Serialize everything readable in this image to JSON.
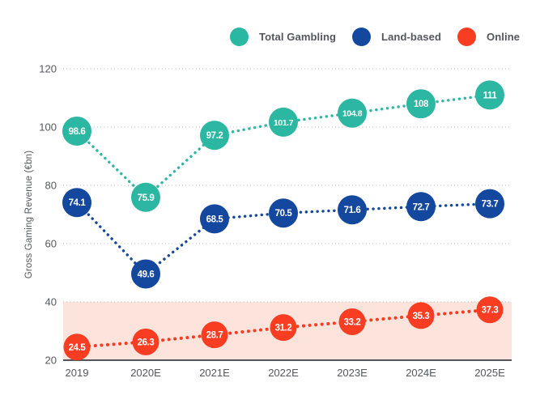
{
  "chart_data": {
    "type": "line",
    "title": "",
    "ylabel": "Gross Gaming Revenue (€bn)",
    "xlabel": "",
    "categories": [
      "2019",
      "2020E",
      "2021E",
      "2022E",
      "2023E",
      "2024E",
      "2025E"
    ],
    "series": [
      {
        "name": "Total Gambling",
        "color": "#2cb7a3",
        "values": [
          98.6,
          75.9,
          97.2,
          101.7,
          104.8,
          108,
          111
        ]
      },
      {
        "name": "Land-based",
        "color": "#14479e",
        "values": [
          74.1,
          49.6,
          68.5,
          70.5,
          71.6,
          72.7,
          73.7
        ]
      },
      {
        "name": "Online",
        "color": "#f93d22",
        "values": [
          24.5,
          26.3,
          28.7,
          31.2,
          33.2,
          35.3,
          37.3
        ]
      }
    ],
    "ylim": [
      20,
      120
    ],
    "yticks": [
      20,
      40,
      60,
      80,
      100,
      120
    ],
    "grid": "horizontal-dotted",
    "line_style": "dotted",
    "legend_position": "top",
    "highlight_band": {
      "series": "Online",
      "from": 20,
      "to": 40,
      "color": "#fce4dc"
    }
  }
}
